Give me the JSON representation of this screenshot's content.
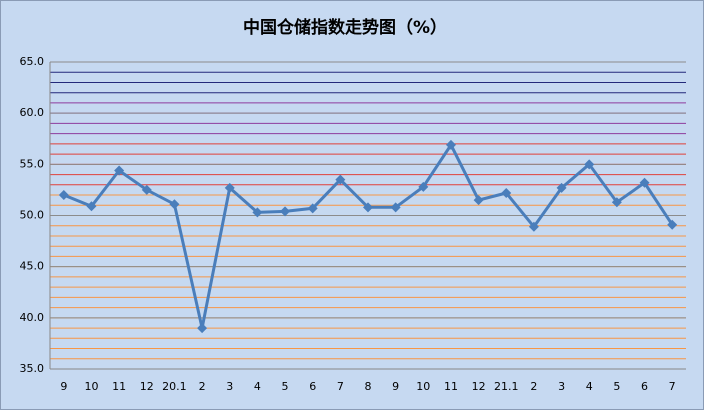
{
  "chart_data": {
    "type": "line",
    "title": "中国仓储指数走势图（%）",
    "categories": [
      "9",
      "10",
      "11",
      "12",
      "20.1",
      "2",
      "3",
      "4",
      "5",
      "6",
      "7",
      "8",
      "9",
      "10",
      "11",
      "12",
      "21.1",
      "2",
      "3",
      "4",
      "5",
      "6",
      "7"
    ],
    "values": [
      52.0,
      50.9,
      54.4,
      52.5,
      51.1,
      39.0,
      52.7,
      50.3,
      50.4,
      50.7,
      53.5,
      50.8,
      50.8,
      52.8,
      56.9,
      51.5,
      52.2,
      48.9,
      52.7,
      55.0,
      51.3,
      53.2,
      49.1
    ],
    "color": "#4a7ebb",
    "ylim": [
      35,
      65
    ],
    "yticks": [
      {
        "value": 35,
        "label": "35.0"
      },
      {
        "value": 40,
        "label": "40.0"
      },
      {
        "value": 45,
        "label": "45.0"
      },
      {
        "value": 50,
        "label": "50.0"
      },
      {
        "value": 55,
        "label": "55.0"
      },
      {
        "value": 60,
        "label": "60.0"
      },
      {
        "value": 65,
        "label": "65.0"
      }
    ],
    "grid": true,
    "minor_grid_step": 1
  }
}
